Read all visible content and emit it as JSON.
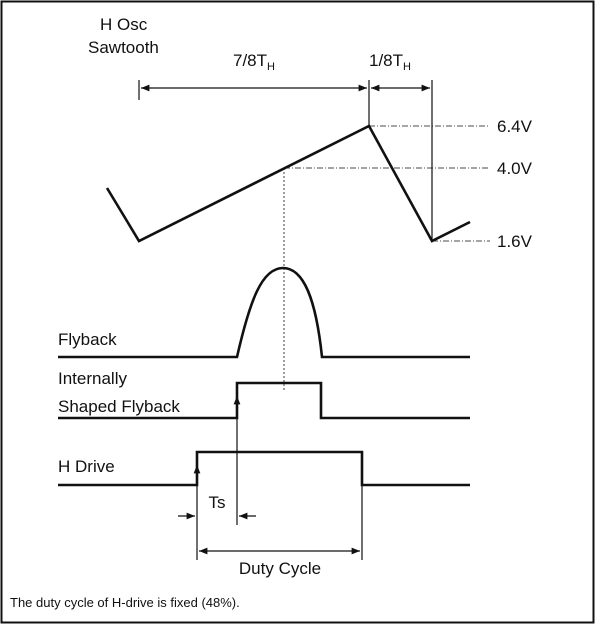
{
  "header": {
    "title": [
      "H Osc",
      "Sawtooth"
    ]
  },
  "intervals": [
    {
      "main": "7/8T",
      "sub": "H"
    },
    {
      "main": "1/8T",
      "sub": "H"
    }
  ],
  "levels": [
    "6.4V",
    "4.0V",
    "1.6V"
  ],
  "signals": [
    "Flyback",
    "Internally",
    "Shaped Flyback",
    "H Drive"
  ],
  "timing": [
    "Ts",
    "Duty Cycle"
  ],
  "caption": "The duty cycle of H-drive is fixed (48%)."
}
